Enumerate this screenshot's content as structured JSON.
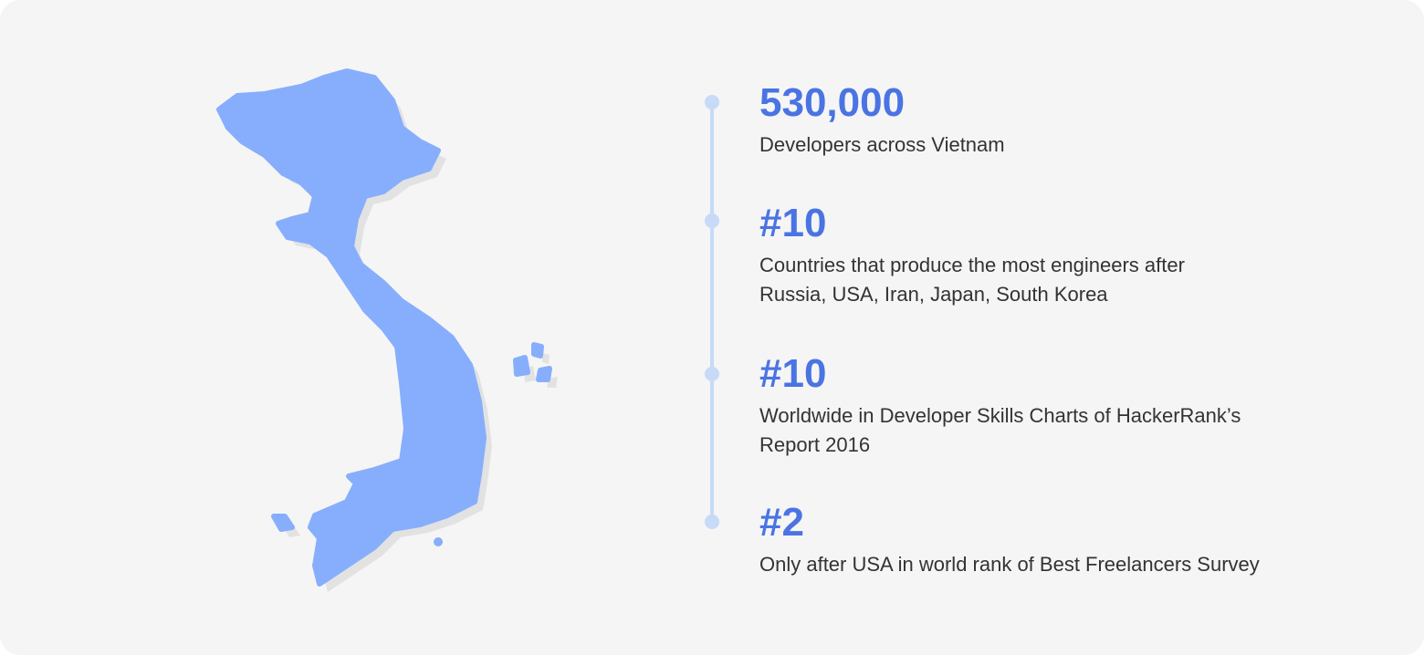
{
  "colors": {
    "accent": "#4a74e3",
    "map": "#86aefc",
    "timeline": "#c7daf8"
  },
  "stats": [
    {
      "value": "530,000",
      "lines": [
        "Developers across Vietnam"
      ]
    },
    {
      "value": "#10",
      "lines": [
        "Countries that produce the most engineers after",
        "Russia, USA, Iran, Japan, South Korea"
      ]
    },
    {
      "value": "#10",
      "lines": [
        "Worldwide in Developer Skills Charts of HackerRank’s",
        "Report 2016"
      ]
    },
    {
      "value": "#2",
      "lines": [
        "Only after USA in world rank of Best Freelancers Survey"
      ]
    }
  ]
}
